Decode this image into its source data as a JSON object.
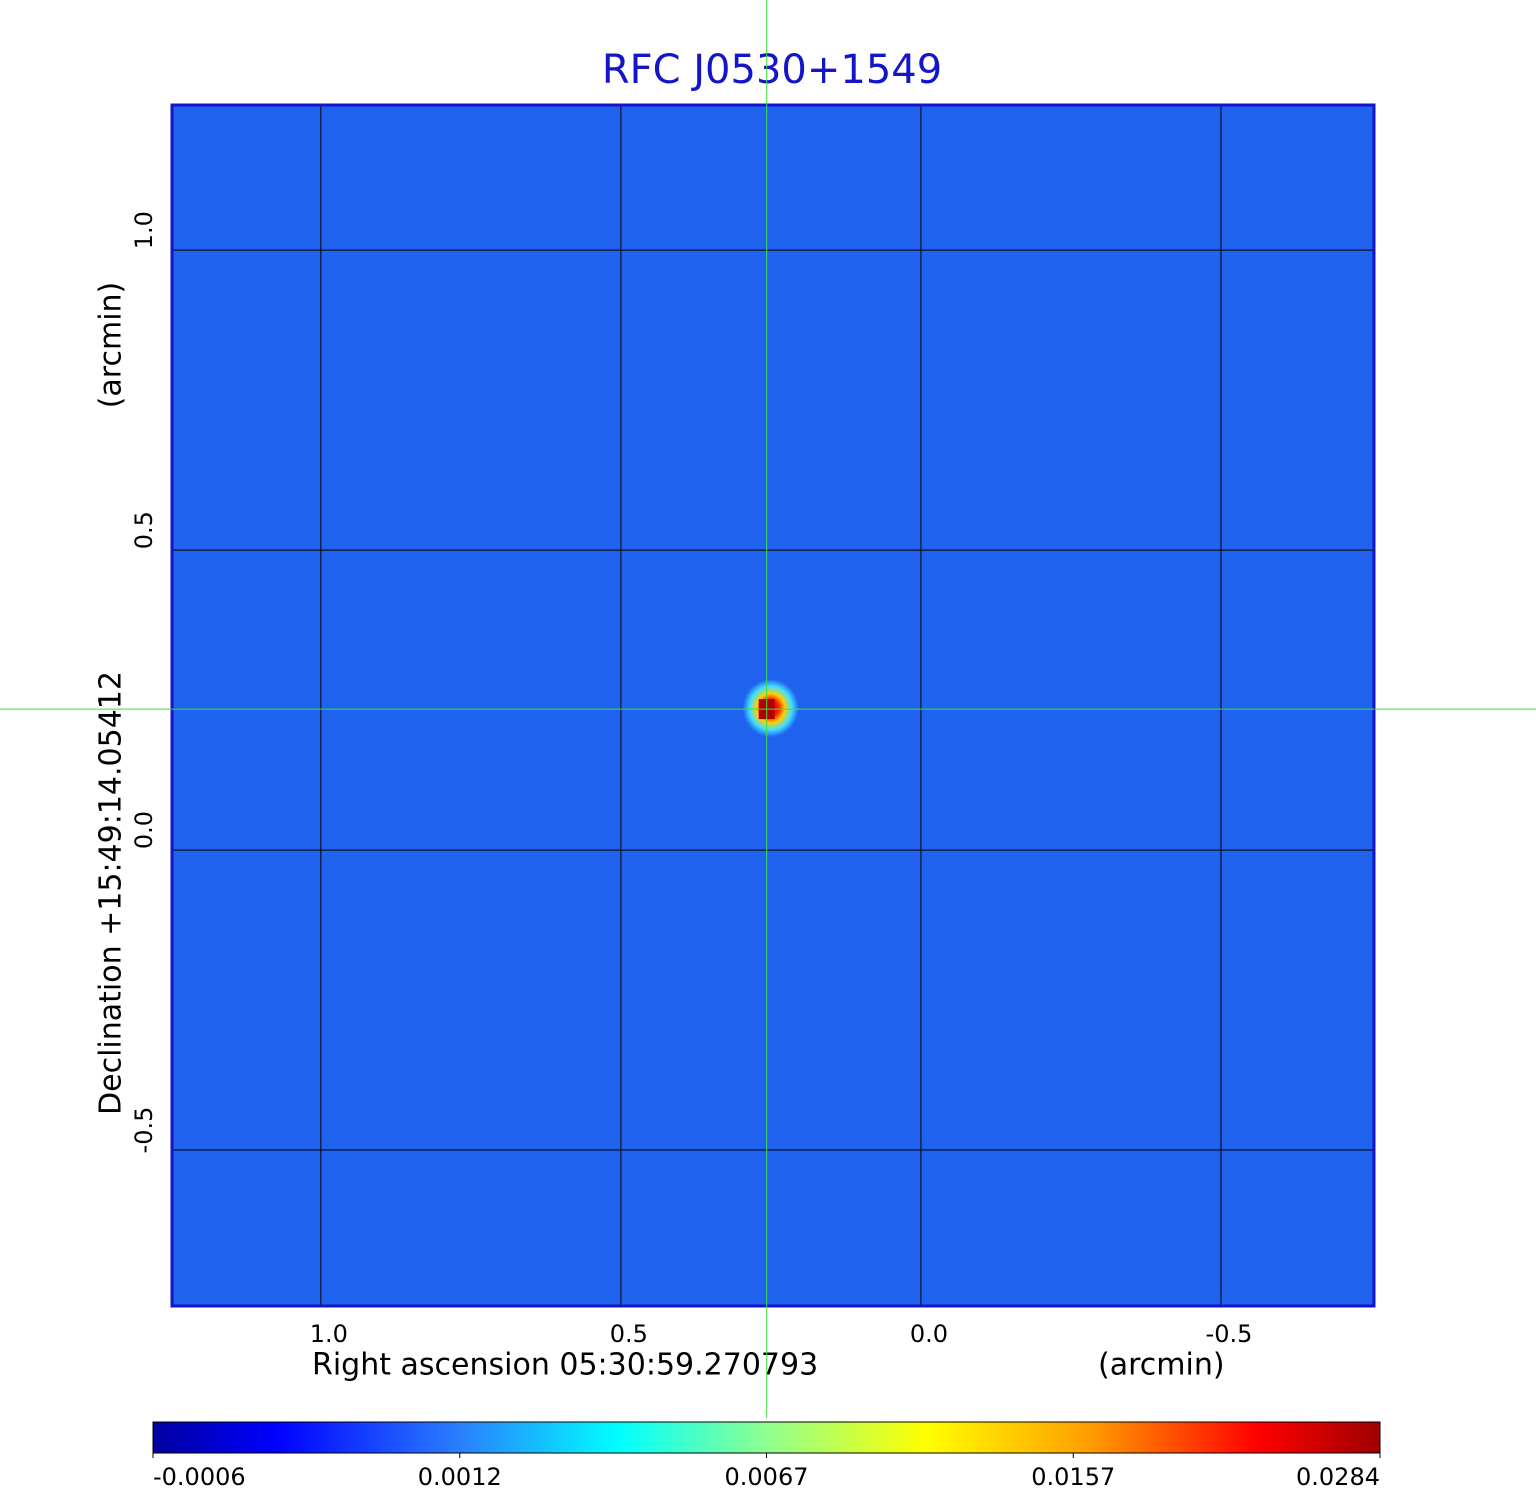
{
  "chart_data": {
    "type": "image",
    "title": "RFC J0530+1549",
    "xlabel": "Right ascension  05:30:59.270793",
    "xunit": "(arcmin)",
    "ylabel": "Declination  +15:49:14.05412",
    "yunit": "(arcmin)",
    "xlim": [
      1.248,
      -0.755
    ],
    "ylim": [
      -0.76,
      1.242
    ],
    "xticks": [
      {
        "value": 1,
        "label": "1.0"
      },
      0.5,
      {
        "value": 0,
        "label": "0.0"
      },
      -0.5
    ],
    "yticks": [
      {
        "value": 1,
        "label": "1.0"
      },
      0.5,
      {
        "value": 0,
        "label": "0.0"
      },
      -0.5
    ],
    "grid": true,
    "background_color": "#1f62ee",
    "source": {
      "x": 0.257,
      "y": 0.235
    },
    "colorbar": {
      "ticks": [
        -0.0006,
        0.0012,
        0.0067,
        0.0157,
        0.0284
      ]
    }
  }
}
